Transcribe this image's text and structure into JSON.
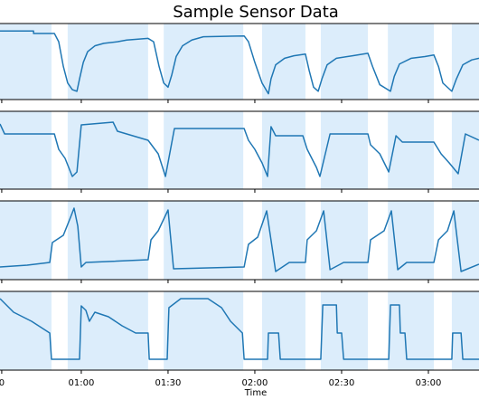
{
  "chart_data": [
    {
      "type": "line",
      "title": "Sample Sensor Data",
      "color": "#1f77b4",
      "span_color": "#dcedfb",
      "spans": [
        [
          31.9,
          49.7
        ],
        [
          55.3,
          83.1
        ],
        [
          88.5,
          116
        ],
        [
          122.5,
          137.5
        ],
        [
          142.8,
          159.1
        ],
        [
          166,
          181.9
        ],
        [
          188.1,
          197.5
        ]
      ],
      "xlim": [
        31.9,
        197.5
      ],
      "ylim": [
        0,
        92
      ],
      "x": [
        31.9,
        43.5,
        43.5,
        50.7,
        52.2,
        53.8,
        55.3,
        56.9,
        58.5,
        59.4,
        60.7,
        62.2,
        64.7,
        67.8,
        72.5,
        75.7,
        83.1,
        85.0,
        86.9,
        88.5,
        90.0,
        91.3,
        92.8,
        95.0,
        98.2,
        102.2,
        116.3,
        117.8,
        120.0,
        122.5,
        124.7,
        125.6,
        127.2,
        130.3,
        133.5,
        137.5,
        138.8,
        140.3,
        141.9,
        143.2,
        145.0,
        148.2,
        153.8,
        159.1,
        160.7,
        163.2,
        166.9,
        168.2,
        170.0,
        174.1,
        178.8,
        181.9,
        183.5,
        185.0,
        188.1,
        189.7,
        191.9,
        195.0,
        197.5
      ],
      "values": [
        83,
        83,
        80,
        80,
        70,
        40,
        20,
        12,
        10,
        25,
        45,
        58,
        65,
        68,
        70,
        72,
        74,
        70,
        40,
        20,
        15,
        30,
        52,
        65,
        72,
        76,
        77,
        70,
        45,
        20,
        7,
        25,
        42,
        50,
        53,
        55,
        35,
        15,
        10,
        25,
        42,
        50,
        53,
        56,
        40,
        18,
        10,
        28,
        43,
        50,
        52,
        54,
        40,
        20,
        10,
        25,
        42,
        48,
        50
      ]
    },
    {
      "type": "line",
      "color": "#1f77b4",
      "xlim": [
        31.9,
        197.5
      ],
      "ylim": [
        0,
        86
      ],
      "x": [
        31.9,
        33.5,
        50.7,
        52.2,
        54.4,
        56.9,
        58.5,
        60.0,
        71.0,
        72.5,
        83.1,
        86.6,
        89.1,
        92.2,
        116.3,
        117.8,
        120.0,
        122.5,
        124.4,
        125.6,
        127.2,
        136.6,
        138.1,
        141.3,
        142.5,
        146.0,
        159.1,
        160.0,
        163.2,
        166.3,
        168.8,
        171.0,
        181.9,
        184.4,
        187.2,
        190.3,
        192.8,
        197.5
      ],
      "values": [
        72,
        61,
        61,
        44,
        34,
        14,
        19,
        71,
        74,
        64,
        54,
        39,
        14,
        67,
        67,
        54,
        44,
        29,
        14,
        69,
        59,
        59,
        44,
        24,
        14,
        61,
        61,
        49,
        39,
        19,
        59,
        52,
        52,
        39,
        29,
        17,
        61,
        54
      ]
    },
    {
      "type": "line",
      "color": "#1f77b4",
      "xlim": [
        31.9,
        197.5
      ],
      "ylim": [
        0,
        87
      ],
      "x": [
        31.9,
        41.3,
        49.1,
        50.0,
        53.8,
        56.3,
        57.5,
        58.8,
        60.0,
        61.6,
        83.1,
        84.1,
        86.6,
        90.0,
        91.9,
        116.3,
        117.8,
        121.0,
        124.1,
        127.2,
        131.9,
        137.5,
        138.1,
        141.3,
        143.8,
        146.0,
        150.7,
        159.1,
        160.0,
        164.7,
        167.2,
        169.4,
        172.5,
        181.9,
        183.5,
        186.6,
        188.8,
        191.3,
        197.5
      ],
      "values": [
        14,
        16,
        19,
        41,
        49,
        69,
        79,
        59,
        14,
        19,
        22,
        44,
        54,
        77,
        12,
        14,
        39,
        47,
        76,
        9,
        19,
        19,
        44,
        54,
        76,
        11,
        19,
        19,
        44,
        54,
        76,
        11,
        19,
        19,
        44,
        54,
        76,
        9,
        17
      ]
    },
    {
      "type": "line",
      "color": "#1f77b4",
      "xlim": [
        31.9,
        197.5
      ],
      "ylim": [
        0,
        87
      ],
      "xlabel": "Time",
      "xticks": [
        {
          "value": 32.5,
          "label": "0"
        },
        {
          "value": 60,
          "label": "01:00"
        },
        {
          "value": 90,
          "label": "01:30"
        },
        {
          "value": 120,
          "label": "02:00"
        },
        {
          "value": 150,
          "label": "02:30"
        },
        {
          "value": 180,
          "label": "03:00"
        }
      ],
      "x": [
        31.9,
        36.6,
        42.8,
        49.1,
        49.7,
        59.4,
        60.0,
        61.6,
        62.8,
        64.7,
        69.4,
        74.1,
        78.8,
        83.1,
        83.5,
        89.7,
        90.3,
        94.4,
        103.8,
        108.5,
        111.6,
        115.7,
        116.3,
        124.4,
        124.7,
        128.2,
        128.8,
        142.8,
        143.5,
        148.2,
        148.5,
        150.0,
        150.7,
        166.3,
        166.9,
        170.0,
        170.3,
        171.9,
        172.5,
        188.1,
        188.4,
        191.3,
        191.9,
        197.5
      ],
      "values": [
        79,
        64,
        54,
        41,
        12,
        12,
        71,
        66,
        54,
        64,
        59,
        49,
        41,
        41,
        12,
        12,
        69,
        79,
        79,
        69,
        54,
        41,
        12,
        12,
        41,
        41,
        12,
        12,
        72,
        72,
        41,
        41,
        12,
        12,
        72,
        72,
        41,
        41,
        12,
        12,
        41,
        41,
        12,
        12
      ]
    }
  ]
}
